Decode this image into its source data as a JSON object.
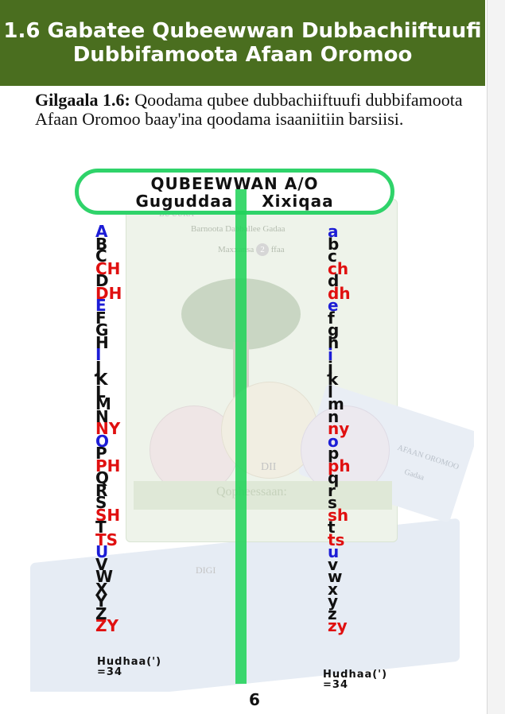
{
  "header": {
    "line1": "1.6 Gabatee Qubeewwan Dubbachiiftuufi",
    "line2": "Dubbifamoota Afaan Oromoo"
  },
  "task": {
    "label": "Gilgaala 1.6:",
    "text": " Qoodama qubee dubbachiiftuufi dubbifamoota Afaan Oromoo baay'ina qoodama isaaniitiin barsiisi."
  },
  "chart": {
    "title": "QUBEEWWAN A/O",
    "left_heading": "Guguddaa",
    "right_heading": "Xixiqaa",
    "uppercase": [
      {
        "t": "A",
        "c": "#1d1dd6"
      },
      {
        "t": "B",
        "c": "#111111"
      },
      {
        "t": "C",
        "c": "#111111"
      },
      {
        "t": "CH",
        "c": "#e01010"
      },
      {
        "t": "D",
        "c": "#111111"
      },
      {
        "t": "DH",
        "c": "#e01010"
      },
      {
        "t": "E",
        "c": "#1d1dd6"
      },
      {
        "t": "F",
        "c": "#111111"
      },
      {
        "t": "G",
        "c": "#111111"
      },
      {
        "t": "H",
        "c": "#111111"
      },
      {
        "t": "I",
        "c": "#1d1dd6"
      },
      {
        "t": "J",
        "c": "#111111"
      },
      {
        "t": "K",
        "c": "#111111"
      },
      {
        "t": "L",
        "c": "#111111"
      },
      {
        "t": "M",
        "c": "#111111"
      },
      {
        "t": "N",
        "c": "#111111"
      },
      {
        "t": "NY",
        "c": "#e01010"
      },
      {
        "t": "O",
        "c": "#1d1dd6"
      },
      {
        "t": "P",
        "c": "#111111"
      },
      {
        "t": "PH",
        "c": "#e01010"
      },
      {
        "t": "Q",
        "c": "#111111"
      },
      {
        "t": "R",
        "c": "#111111"
      },
      {
        "t": "S",
        "c": "#111111"
      },
      {
        "t": "SH",
        "c": "#e01010"
      },
      {
        "t": "T",
        "c": "#111111"
      },
      {
        "t": "TS",
        "c": "#e01010"
      },
      {
        "t": "U",
        "c": "#1d1dd6"
      },
      {
        "t": "V",
        "c": "#111111"
      },
      {
        "t": "W",
        "c": "#111111"
      },
      {
        "t": "X",
        "c": "#111111"
      },
      {
        "t": "Y",
        "c": "#111111"
      },
      {
        "t": "Z",
        "c": "#111111"
      },
      {
        "t": "ZY",
        "c": "#e01010"
      }
    ],
    "lowercase": [
      {
        "t": "a",
        "c": "#1d1dd6"
      },
      {
        "t": "b",
        "c": "#111111"
      },
      {
        "t": "c",
        "c": "#111111"
      },
      {
        "t": "ch",
        "c": "#e01010"
      },
      {
        "t": "d",
        "c": "#111111"
      },
      {
        "t": "dh",
        "c": "#e01010"
      },
      {
        "t": "e",
        "c": "#1d1dd6"
      },
      {
        "t": "f",
        "c": "#111111"
      },
      {
        "t": "g",
        "c": "#111111"
      },
      {
        "t": "h",
        "c": "#111111"
      },
      {
        "t": "i",
        "c": "#1d1dd6"
      },
      {
        "t": "j",
        "c": "#111111"
      },
      {
        "t": "k",
        "c": "#111111"
      },
      {
        "t": "l",
        "c": "#111111"
      },
      {
        "t": "m",
        "c": "#111111"
      },
      {
        "t": "n",
        "c": "#111111"
      },
      {
        "t": "ny",
        "c": "#e01010"
      },
      {
        "t": "o",
        "c": "#1d1dd6"
      },
      {
        "t": "p",
        "c": "#111111"
      },
      {
        "t": "ph",
        "c": "#e01010"
      },
      {
        "t": "q",
        "c": "#111111"
      },
      {
        "t": "r",
        "c": "#111111"
      },
      {
        "t": "s",
        "c": "#111111"
      },
      {
        "t": "sh",
        "c": "#e01010"
      },
      {
        "t": "t",
        "c": "#111111"
      },
      {
        "t": "ts",
        "c": "#e01010"
      },
      {
        "t": "u",
        "c": "#1d1dd6"
      },
      {
        "t": "v",
        "c": "#111111"
      },
      {
        "t": "w",
        "c": "#111111"
      },
      {
        "t": "x",
        "c": "#111111"
      },
      {
        "t": "y",
        "c": "#111111"
      },
      {
        "t": "z",
        "c": "#111111"
      },
      {
        "t": "zy",
        "c": "#e01010"
      }
    ],
    "left_total_label": "Hudhaa(')",
    "left_total": "=34",
    "right_total_label": "Hudhaa(')",
    "right_total": "=34",
    "bg_text": {
      "t1": "Barnoota Dabballee Gadaa",
      "t2": "Maxxansa",
      "t2_num": "2",
      "t2_tail": "ffaa",
      "t3": "Qopheessaan:",
      "t4": "AFAAN OROMOO",
      "t5": "Gadaa",
      "t6": "BU'UURA",
      "t7": "DIGI",
      "t8": "DII"
    }
  },
  "page_number": "6"
}
